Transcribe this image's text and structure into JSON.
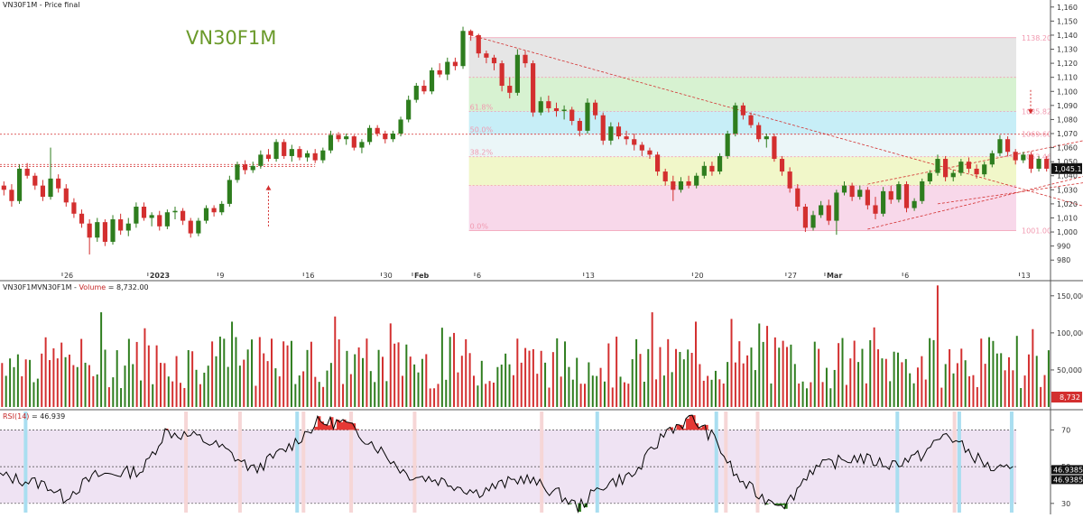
{
  "colors": {
    "up": "#2e7d1e",
    "down": "#d32f2f",
    "rsi_line": "#000000",
    "rsi_band": "#efe3f3",
    "rsi_over": "#e53935",
    "rsi_under": "#2e7d1e",
    "signal_cyan": "#a9def0",
    "signal_pink": "#f6d6d6",
    "fib_zones": [
      "#e6e6e6",
      "#d7f2d1",
      "#c7eef7",
      "#ebf6f8",
      "#f1f7c9",
      "#f8d8ea"
    ],
    "fib_line": "#f19ab0"
  },
  "chart_data": [
    {
      "type": "candlestick",
      "name": "price",
      "title": "VN30F1M",
      "panel_label": "VN30F1M - Price final",
      "ylim": [
        975,
        1165
      ],
      "y_ticks": [
        "980",
        "990",
        "1,000",
        "1,010",
        "1,020",
        "1,030",
        "1,040",
        "1,050",
        "1,060",
        "1,070",
        "1,080",
        "1,090",
        "1,100",
        "1,110",
        "1,120",
        "1,130",
        "1,140",
        "1,150",
        "1,160"
      ],
      "x_ticks": [
        "26",
        "2023",
        "9",
        "16",
        "30",
        "Feb",
        "6",
        "13",
        "20",
        "27",
        "Mar",
        "6",
        "13"
      ],
      "last_price_label": "1,045.1",
      "last_price": 1045.1,
      "fib_levels": [
        {
          "label": "1138.20",
          "left_label": "",
          "value": 1138.2
        },
        {
          "label": "",
          "left_label": "",
          "value": 1110
        },
        {
          "label": "1085.82",
          "left_label": "61.8%",
          "value": 1085.8
        },
        {
          "label": "1069.60",
          "left_label": "50.0%",
          "value": 1069.6
        },
        {
          "label": "1053.46",
          "left_label": "38.2%",
          "value": 1053.5
        },
        {
          "label": "",
          "left_label": "",
          "value": 1033
        },
        {
          "label": "1001.00",
          "left_label": "0.0%",
          "value": 1001.0
        }
      ],
      "horizontal_lines": [
        1069.5,
        1048.0,
        1046.5
      ],
      "candles": [
        [
          1033,
          1036,
          1026,
          1030
        ],
        [
          1030,
          1034,
          1018,
          1022
        ],
        [
          1022,
          1048,
          1020,
          1045
        ],
        [
          1045,
          1049,
          1038,
          1040
        ],
        [
          1040,
          1042,
          1030,
          1033
        ],
        [
          1033,
          1037,
          1022,
          1025
        ],
        [
          1025,
          1060,
          1023,
          1038
        ],
        [
          1038,
          1041,
          1028,
          1031
        ],
        [
          1031,
          1034,
          1018,
          1021
        ],
        [
          1021,
          1024,
          1010,
          1013
        ],
        [
          1013,
          1016,
          1003,
          1006
        ],
        [
          1006,
          1009,
          984,
          996
        ],
        [
          996,
          1010,
          993,
          1007
        ],
        [
          1007,
          1009,
          990,
          993
        ],
        [
          993,
          1012,
          991,
          1009
        ],
        [
          1009,
          1013,
          998,
          1001
        ],
        [
          1001,
          1010,
          997,
          1006
        ],
        [
          1006,
          1021,
          1003,
          1018
        ],
        [
          1018,
          1021,
          1008,
          1010
        ],
        [
          1010,
          1014,
          1004,
          1012
        ],
        [
          1012,
          1015,
          1001,
          1004
        ],
        [
          1004,
          1016,
          1002,
          1014
        ],
        [
          1014,
          1018,
          1009,
          1015
        ],
        [
          1015,
          1017,
          1005,
          1008
        ],
        [
          1008,
          1010,
          996,
          999
        ],
        [
          999,
          1010,
          997,
          1008
        ],
        [
          1008,
          1019,
          1006,
          1017
        ],
        [
          1017,
          1019,
          1011,
          1014
        ],
        [
          1014,
          1022,
          1012,
          1020
        ],
        [
          1020,
          1040,
          1018,
          1037
        ],
        [
          1037,
          1050,
          1035,
          1048
        ],
        [
          1048,
          1051,
          1041,
          1044
        ],
        [
          1044,
          1050,
          1042,
          1047
        ],
        [
          1047,
          1058,
          1045,
          1055
        ],
        [
          1055,
          1059,
          1050,
          1052
        ],
        [
          1052,
          1066,
          1050,
          1064
        ],
        [
          1064,
          1066,
          1052,
          1054
        ],
        [
          1054,
          1062,
          1050,
          1059
        ],
        [
          1059,
          1061,
          1051,
          1053
        ],
        [
          1053,
          1058,
          1050,
          1056
        ],
        [
          1056,
          1059,
          1049,
          1051
        ],
        [
          1051,
          1060,
          1049,
          1058
        ],
        [
          1058,
          1072,
          1056,
          1069
        ],
        [
          1069,
          1071,
          1064,
          1066
        ],
        [
          1066,
          1070,
          1062,
          1068
        ],
        [
          1068,
          1069,
          1058,
          1060
        ],
        [
          1060,
          1066,
          1056,
          1064
        ],
        [
          1064,
          1076,
          1062,
          1074
        ],
        [
          1074,
          1076,
          1068,
          1070
        ],
        [
          1070,
          1072,
          1063,
          1066
        ],
        [
          1066,
          1072,
          1064,
          1070
        ],
        [
          1070,
          1082,
          1068,
          1080
        ],
        [
          1080,
          1097,
          1078,
          1094
        ],
        [
          1094,
          1106,
          1092,
          1104
        ],
        [
          1104,
          1108,
          1098,
          1100
        ],
        [
          1100,
          1117,
          1098,
          1115
        ],
        [
          1115,
          1120,
          1110,
          1112
        ],
        [
          1112,
          1124,
          1108,
          1121
        ],
        [
          1121,
          1124,
          1115,
          1118
        ],
        [
          1118,
          1146,
          1116,
          1143
        ],
        [
          1143,
          1144,
          1136,
          1140
        ],
        [
          1140,
          1141,
          1124,
          1127
        ],
        [
          1127,
          1129,
          1120,
          1124
        ],
        [
          1124,
          1126,
          1115,
          1120
        ],
        [
          1120,
          1122,
          1100,
          1104
        ],
        [
          1104,
          1110,
          1095,
          1099
        ],
        [
          1099,
          1130,
          1097,
          1126
        ],
        [
          1126,
          1129,
          1117,
          1120
        ],
        [
          1120,
          1122,
          1082,
          1085
        ],
        [
          1085,
          1096,
          1083,
          1093
        ],
        [
          1093,
          1097,
          1085,
          1088
        ],
        [
          1088,
          1092,
          1082,
          1086
        ],
        [
          1086,
          1090,
          1080,
          1087
        ],
        [
          1087,
          1089,
          1076,
          1079
        ],
        [
          1079,
          1081,
          1068,
          1072
        ],
        [
          1072,
          1095,
          1070,
          1092
        ],
        [
          1092,
          1094,
          1080,
          1083
        ],
        [
          1083,
          1085,
          1062,
          1065
        ],
        [
          1065,
          1078,
          1062,
          1075
        ],
        [
          1075,
          1078,
          1066,
          1068
        ],
        [
          1068,
          1072,
          1062,
          1066
        ],
        [
          1066,
          1070,
          1058,
          1062
        ],
        [
          1062,
          1064,
          1054,
          1058
        ],
        [
          1058,
          1060,
          1052,
          1055
        ],
        [
          1055,
          1057,
          1040,
          1043
        ],
        [
          1043,
          1045,
          1033,
          1036
        ],
        [
          1036,
          1040,
          1022,
          1030
        ],
        [
          1030,
          1039,
          1028,
          1036
        ],
        [
          1036,
          1040,
          1031,
          1033
        ],
        [
          1033,
          1042,
          1031,
          1040
        ],
        [
          1040,
          1050,
          1038,
          1047
        ],
        [
          1047,
          1050,
          1040,
          1043
        ],
        [
          1043,
          1056,
          1041,
          1054
        ],
        [
          1054,
          1072,
          1052,
          1070
        ],
        [
          1070,
          1092,
          1068,
          1090
        ],
        [
          1090,
          1092,
          1080,
          1083
        ],
        [
          1083,
          1085,
          1074,
          1076
        ],
        [
          1076,
          1078,
          1064,
          1066
        ],
        [
          1066,
          1070,
          1060,
          1068
        ],
        [
          1068,
          1070,
          1050,
          1052
        ],
        [
          1052,
          1054,
          1040,
          1043
        ],
        [
          1043,
          1046,
          1028,
          1031
        ],
        [
          1031,
          1034,
          1015,
          1018
        ],
        [
          1018,
          1020,
          1000,
          1003
        ],
        [
          1003,
          1015,
          1001,
          1012
        ],
        [
          1012,
          1022,
          1010,
          1019
        ],
        [
          1019,
          1023,
          1005,
          1008
        ],
        [
          1008,
          1030,
          998,
          1028
        ],
        [
          1028,
          1036,
          1026,
          1033
        ],
        [
          1033,
          1035,
          1022,
          1025
        ],
        [
          1025,
          1033,
          1023,
          1030
        ],
        [
          1030,
          1032,
          1016,
          1019
        ],
        [
          1019,
          1025,
          1009,
          1013
        ],
        [
          1013,
          1032,
          1011,
          1029
        ],
        [
          1029,
          1033,
          1020,
          1023
        ],
        [
          1023,
          1036,
          1021,
          1034
        ],
        [
          1034,
          1036,
          1014,
          1017
        ],
        [
          1017,
          1024,
          1015,
          1022
        ],
        [
          1022,
          1038,
          1020,
          1036
        ],
        [
          1036,
          1044,
          1034,
          1042
        ],
        [
          1042,
          1055,
          1040,
          1052
        ],
        [
          1052,
          1054,
          1036,
          1039
        ],
        [
          1039,
          1044,
          1036,
          1042
        ],
        [
          1042,
          1052,
          1040,
          1050
        ],
        [
          1050,
          1053,
          1042,
          1045
        ],
        [
          1045,
          1048,
          1038,
          1041
        ],
        [
          1041,
          1050,
          1039,
          1048
        ],
        [
          1048,
          1058,
          1046,
          1056
        ],
        [
          1056,
          1069,
          1054,
          1066
        ],
        [
          1066,
          1068,
          1054,
          1057
        ],
        [
          1057,
          1059,
          1048,
          1051
        ],
        [
          1051,
          1057,
          1049,
          1055
        ],
        [
          1055,
          1057,
          1042,
          1045
        ],
        [
          1045,
          1054,
          1043,
          1052
        ],
        [
          1052,
          1054,
          1043,
          1045
        ]
      ]
    },
    {
      "type": "bar",
      "name": "volume",
      "title": "VN30F1M",
      "panel_label_prefix": "VN30F1M - ",
      "panel_label_series": "Volume",
      "panel_label_value": " = 8,732.00",
      "ylim": [
        0,
        168000
      ],
      "y_ticks": [
        {
          "label": "50,000",
          "value": 50000
        },
        {
          "label": "100,000",
          "value": 100000
        },
        {
          "label": "150,000",
          "value": 150000
        }
      ],
      "last_value_label": "8,732"
    },
    {
      "type": "line",
      "name": "rsi",
      "panel_label_series": "RSI(14)",
      "panel_label_value": " = 46.939",
      "ylim": [
        25,
        80
      ],
      "y_ticks": [
        {
          "label": "30",
          "value": 30
        },
        {
          "label": "50",
          "value": 50
        },
        {
          "label": "70",
          "value": 70
        }
      ],
      "band": [
        30,
        70
      ],
      "mid": 50,
      "last_value_labels": [
        "46.9385",
        "46.9385"
      ],
      "cyan_signals": [
        5,
        62,
        125,
        150,
        188,
        201,
        212
      ],
      "pink_signals": [
        58,
        75,
        95,
        110,
        130,
        170,
        228,
        238,
        300
      ]
    }
  ]
}
